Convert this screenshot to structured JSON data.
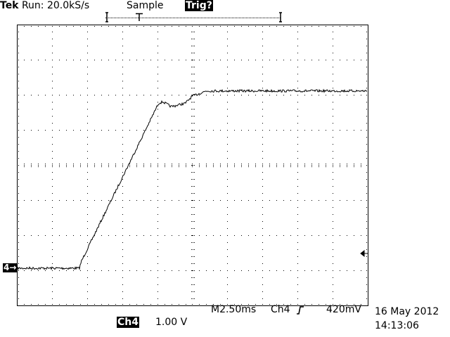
{
  "header": {
    "brand": "Tek",
    "run_status": "Run: 20.0kS/s",
    "acq_mode": "Sample",
    "trigger_status": "Trig?"
  },
  "footer": {
    "channel_label": "Ch4",
    "channel_scale": "1.00 V",
    "timebase": "M2.50ms",
    "trigger_source": "Ch4",
    "trigger_slope_icon": "rising-edge-icon",
    "trigger_level": "420mV",
    "date": "16 May 2012",
    "time": "14:13:06"
  },
  "channel_marker": "4→",
  "colors": {
    "trace": "#000000",
    "background": "#ffffff"
  },
  "chart_data": {
    "type": "line",
    "grid": true,
    "divisions": {
      "x": 10,
      "y": 8
    },
    "xlim_ms": [
      0,
      25
    ],
    "ylim_V": [
      -1.06,
      6.94
    ],
    "ground_level_V": 0,
    "trigger_level_V": 0.42,
    "series": [
      {
        "channel": "Ch4",
        "x_ms": [
          0,
          4.45,
          4.6,
          10.1,
          10.4,
          11.0,
          12.0,
          12.5,
          13.5,
          25.0
        ],
        "y_V": [
          0,
          0,
          0.2,
          4.7,
          4.74,
          4.6,
          4.7,
          4.9,
          5.05,
          5.05
        ]
      }
    ]
  }
}
